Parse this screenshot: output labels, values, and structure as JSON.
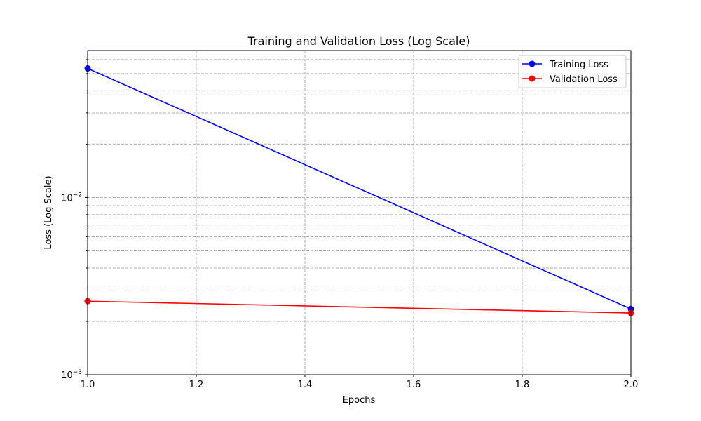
{
  "chart_data": {
    "type": "line",
    "title": "Training and Validation Loss (Log Scale)",
    "xlabel": "Epochs",
    "ylabel": "Loss (Log Scale)",
    "x": [
      1,
      2
    ],
    "xlim": [
      1.0,
      2.0
    ],
    "ylim": [
      0.001,
      0.0675
    ],
    "yscale": "log",
    "x_ticks": [
      "1.0",
      "1.2",
      "1.4",
      "1.6",
      "1.8",
      "2.0"
    ],
    "y_ticks": [
      {
        "base": "10",
        "exp": "−3"
      },
      {
        "base": "10",
        "exp": "−2"
      }
    ],
    "grid": true,
    "legend_position": "top-right",
    "series": [
      {
        "name": "Training Loss",
        "color": "#0000ff",
        "values": [
          0.0535,
          0.00235
        ]
      },
      {
        "name": "Validation Loss",
        "color": "#ff0000",
        "values": [
          0.0026,
          0.00223
        ]
      }
    ]
  }
}
